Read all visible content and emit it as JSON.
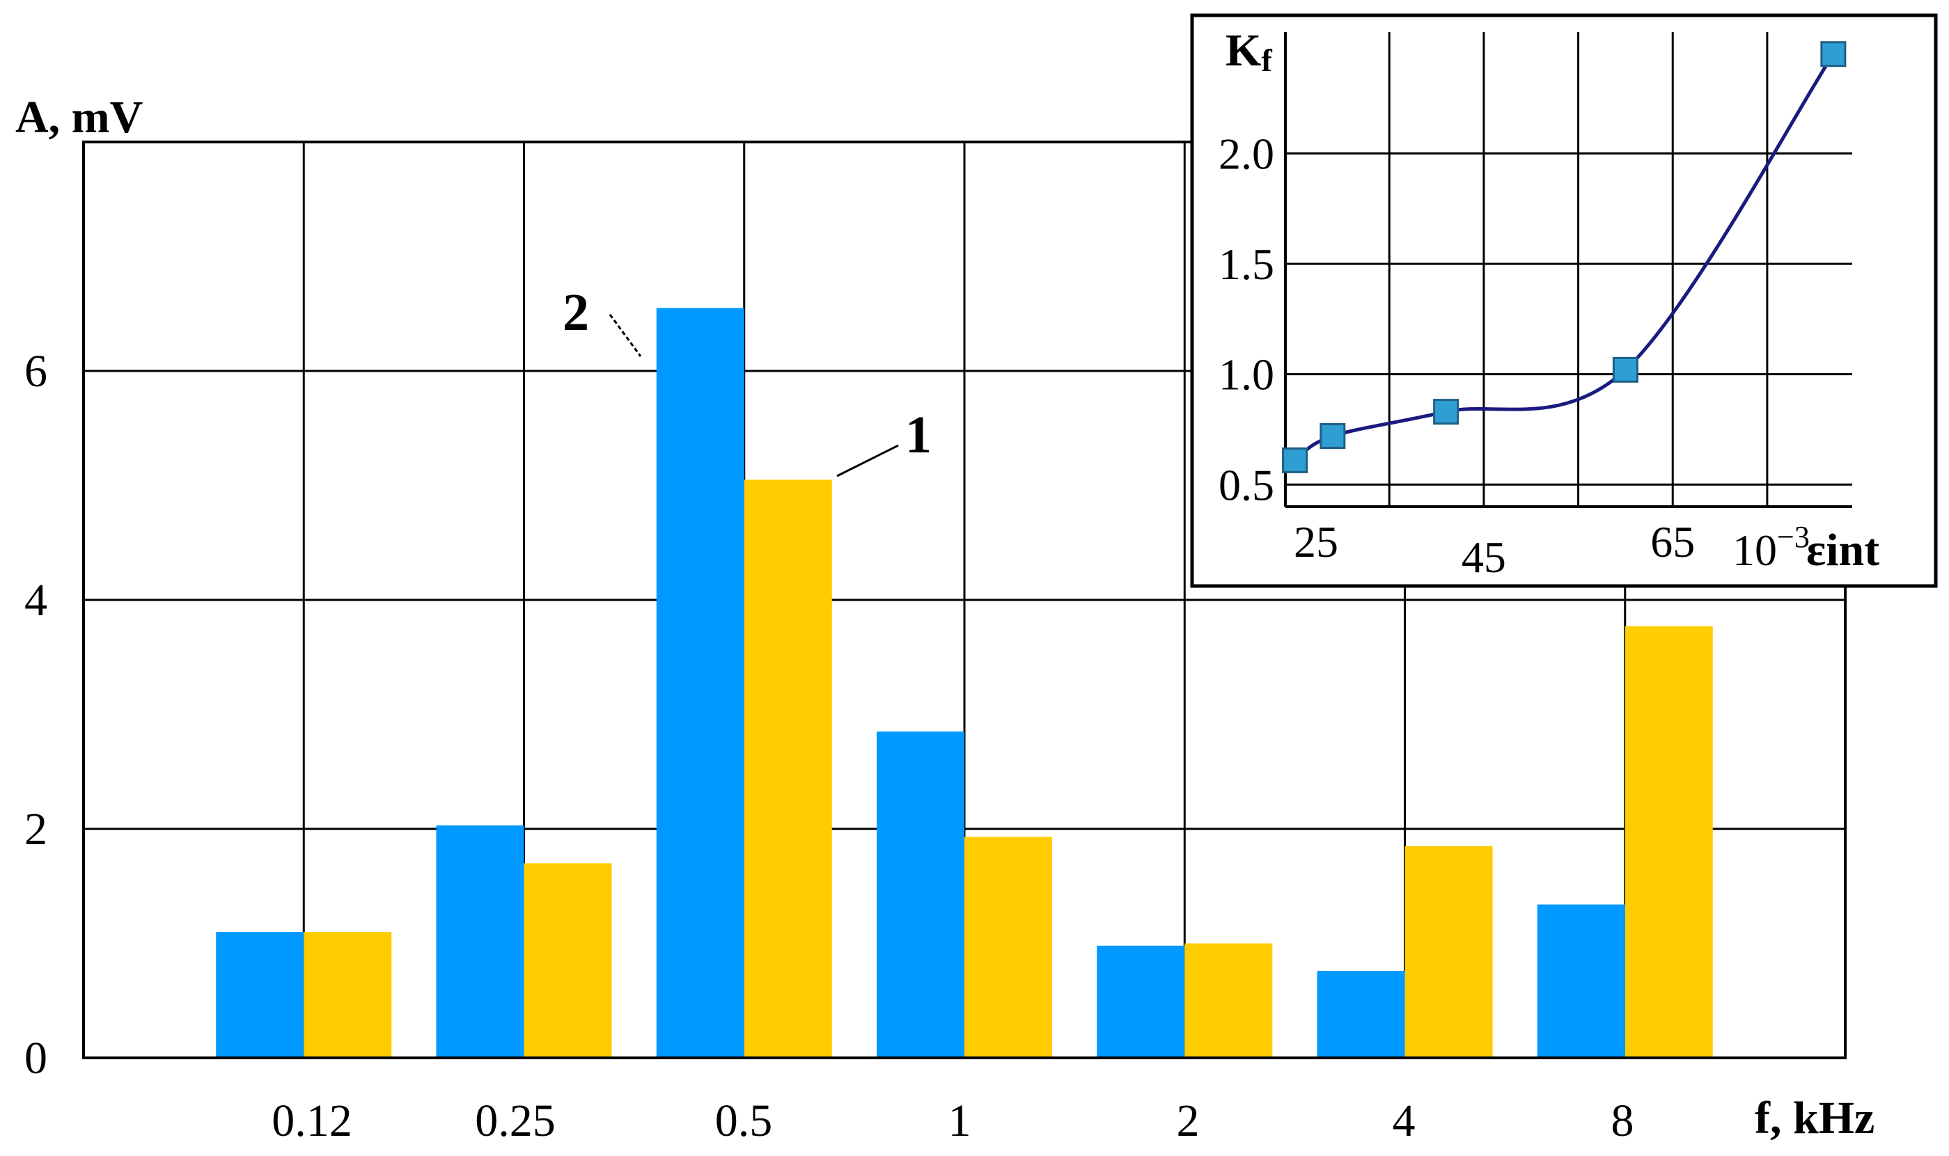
{
  "chart_data": [
    {
      "type": "bar",
      "categories": [
        "0.12",
        "0.25",
        "0.5",
        "1",
        "2",
        "4",
        "8"
      ],
      "xlabel": "f, kHz",
      "ylabel": "A, mV",
      "ylim": [
        0,
        8
      ],
      "yticks": [
        "0",
        "2",
        "4",
        "6"
      ],
      "grid": true,
      "series": [
        {
          "name": "2",
          "color": "#0099ff",
          "values": [
            1.1,
            2.03,
            6.55,
            2.85,
            0.98,
            0.76,
            1.34
          ]
        },
        {
          "name": "1",
          "color": "#ffcc00",
          "values": [
            1.1,
            1.7,
            5.05,
            1.93,
            1.0,
            1.85,
            3.77
          ]
        }
      ]
    },
    {
      "type": "line",
      "xlabel": "εint",
      "xlabel_unit": "10",
      "xlabel_unit_exp": "−3",
      "ylabel": "K",
      "ylabel_sub": "f",
      "xticks": [
        "25",
        "45",
        "65"
      ],
      "yticks": [
        "0.5",
        "1.0",
        "1.5",
        "2.0"
      ],
      "xlim": [
        24,
        84
      ],
      "ylim": [
        0.4,
        2.55
      ],
      "grid": true,
      "marker_color": "#2f9fd3",
      "line_color": "#1a1a80",
      "x": [
        25,
        29,
        41,
        60,
        82
      ],
      "y": [
        0.61,
        0.72,
        0.83,
        1.02,
        2.45
      ]
    }
  ]
}
